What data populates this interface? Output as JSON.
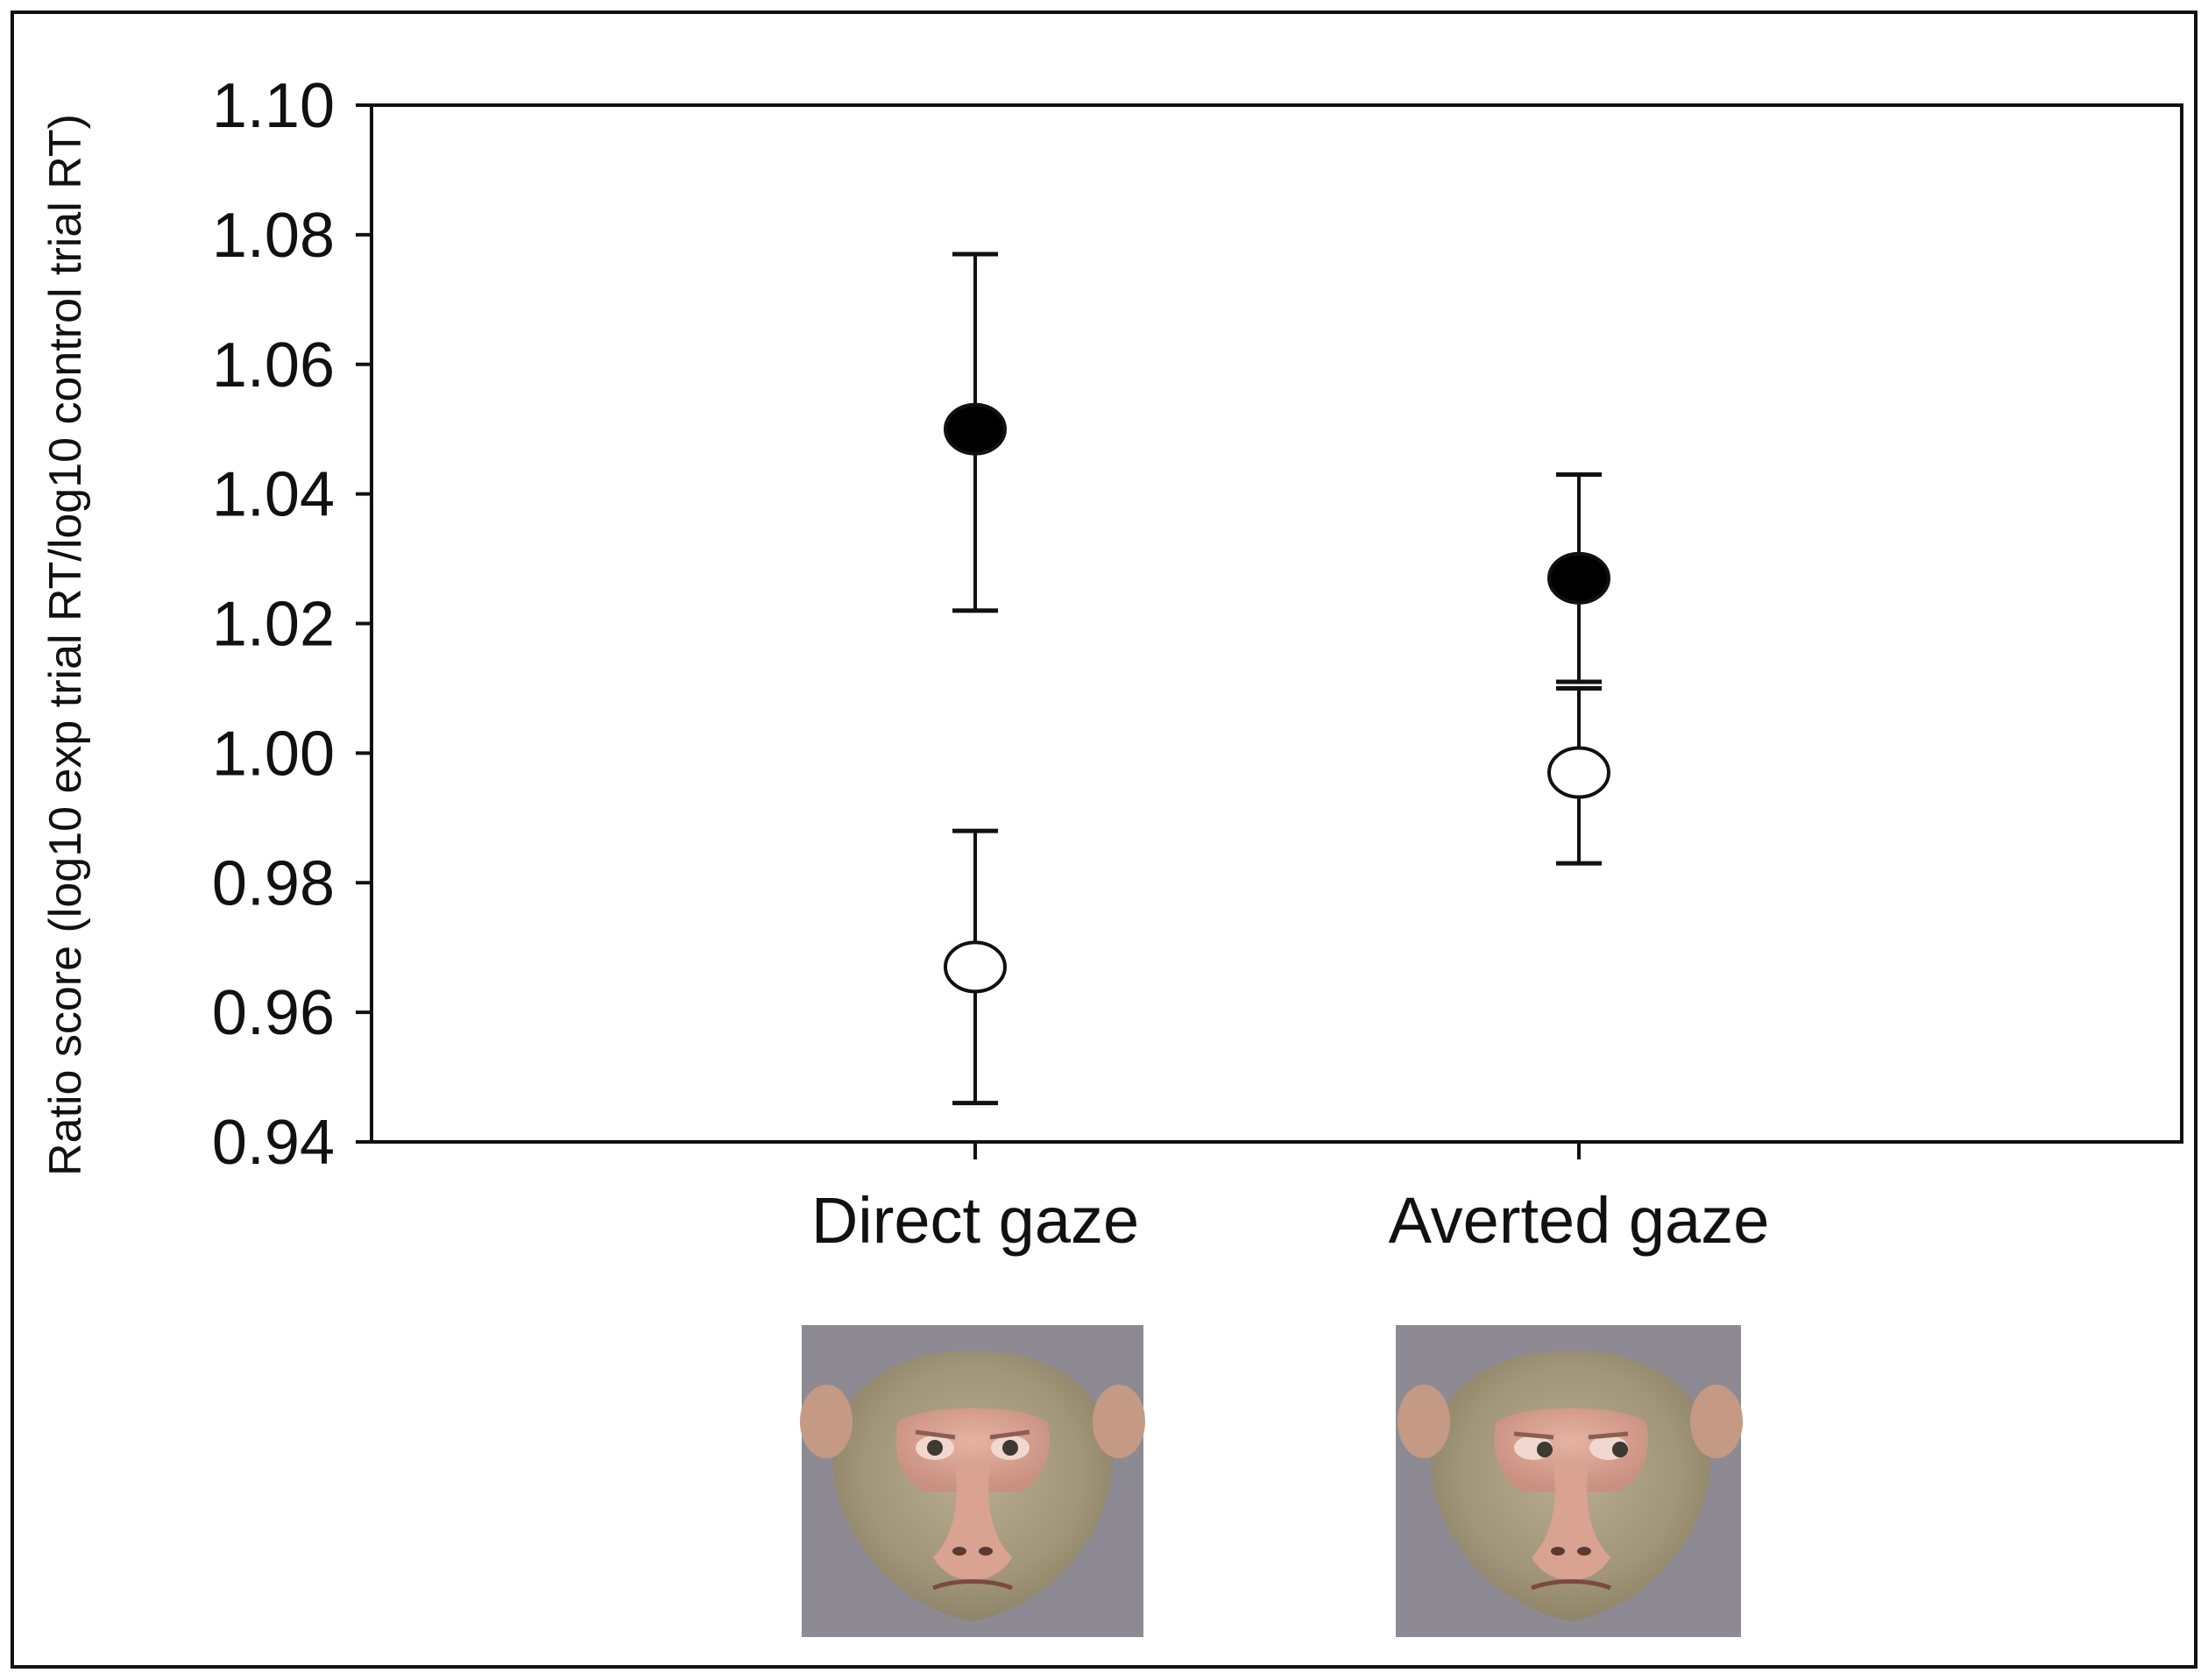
{
  "chart_data": {
    "type": "scatter",
    "title": "",
    "xlabel": "",
    "ylabel": "Ratio score (log10 exp trial RT/log10 control trial RT)",
    "categories": [
      "Direct gaze",
      "Averted gaze"
    ],
    "ylim": [
      0.94,
      1.1
    ],
    "yticks": [
      "0.94",
      "0.96",
      "0.98",
      "1.00",
      "1.02",
      "1.04",
      "1.06",
      "1.08",
      "1.10"
    ],
    "grid": false,
    "legend": "none",
    "series": [
      {
        "marker": "filled-circle",
        "color": "#000000",
        "values": [
          1.05,
          1.027
        ],
        "err_low": [
          1.022,
          1.011
        ],
        "err_high": [
          1.077,
          1.043
        ]
      },
      {
        "marker": "open-circle",
        "color": "#ffffff",
        "values": [
          0.967,
          0.997
        ],
        "err_low": [
          0.946,
          0.983
        ],
        "err_high": [
          0.988,
          1.01
        ]
      }
    ],
    "stimuli": [
      {
        "category": "Direct gaze",
        "icon": "monkey-face-direct-gaze"
      },
      {
        "category": "Averted gaze",
        "icon": "monkey-face-averted-gaze"
      }
    ],
    "colors": {
      "axis": "#111111",
      "background": "#ffffff",
      "photo_bg": "#8d8a93",
      "fur": "#a59a7c",
      "skin": "#d8a090"
    }
  }
}
